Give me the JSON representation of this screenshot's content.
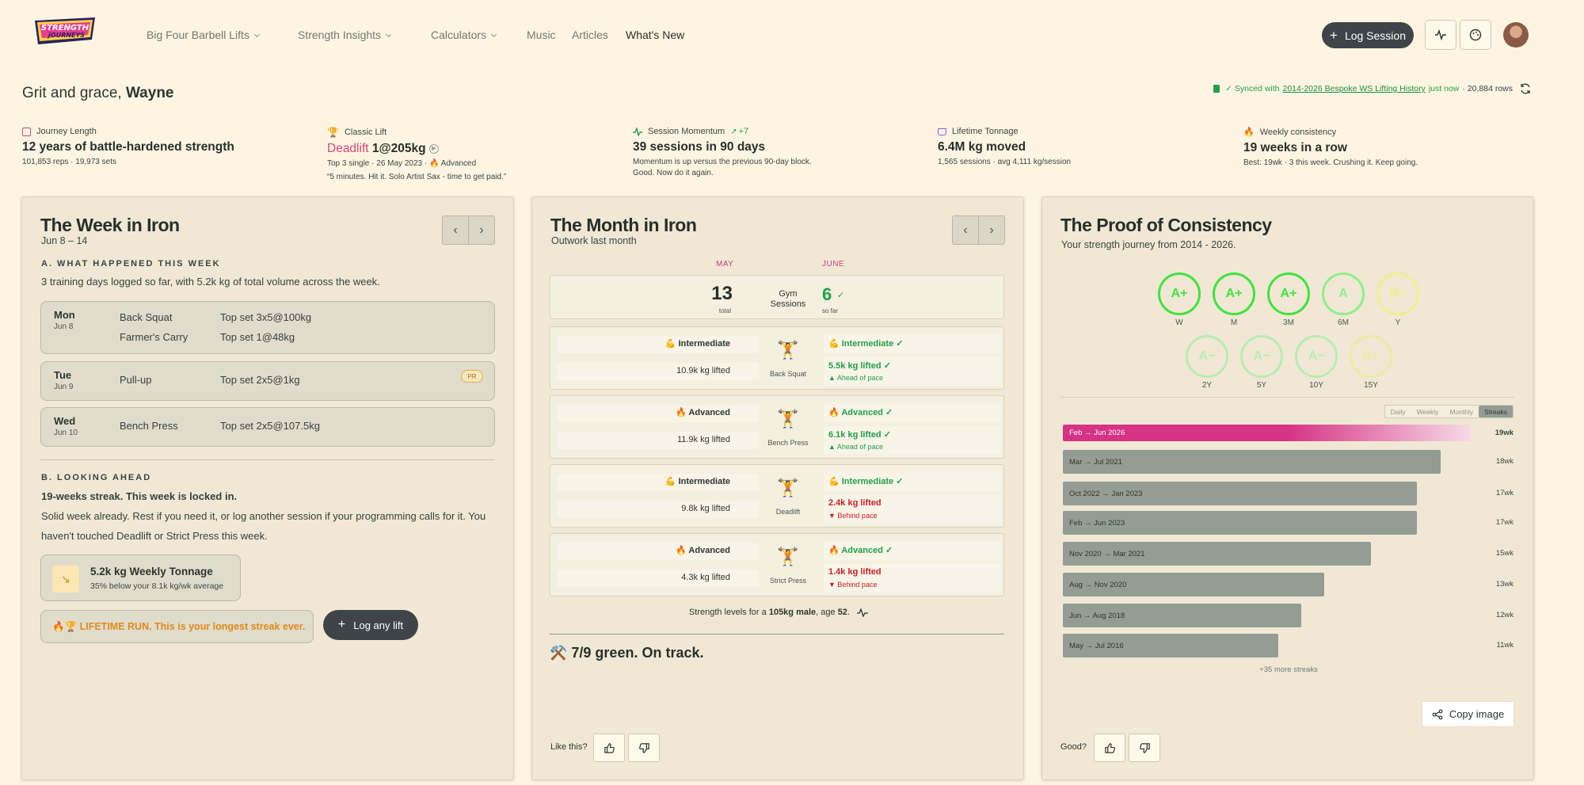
{
  "header": {
    "nav": {
      "big_four": "Big Four Barbell Lifts",
      "insights": "Strength Insights",
      "calculators": "Calculators",
      "music": "Music",
      "articles": "Articles",
      "whats_new": "What's New"
    },
    "log_session": "Log Session"
  },
  "greeting": {
    "prefix": "Grit and grace,",
    "name": "Wayne"
  },
  "sync": {
    "prefix": "✓ Synced with",
    "sheet": "2014-2026 Bespoke WS Lifting History",
    "when": "just now",
    "rows": "· 20,884 rows"
  },
  "stats": {
    "journey": {
      "label": "Journey Length",
      "big": "12 years of battle-hardened strength",
      "sub": "101,853 reps · 19,973 sets"
    },
    "classic": {
      "label": "Classic Lift",
      "lift": "Deadlift",
      "value": "1@205kg",
      "sub": "Top 3 single · 26 May 2023 ·",
      "level": "🔥 Advanced",
      "quote": "“5 minutes. Hit it. Solo Artist Sax - time to get paid.”"
    },
    "momentum": {
      "label": "Session Momentum",
      "delta": "+7",
      "big": "39 sessions in 90 days",
      "sub1": "Momentum is up versus the previous 90-day block.",
      "sub2": "Good. Now do it again."
    },
    "tonnage": {
      "label": "Lifetime Tonnage",
      "big": "6.4M kg moved",
      "sub": "1,565 sessions · avg 4,111 kg/session"
    },
    "consistency": {
      "label": "Weekly consistency",
      "big": "19 weeks in a row",
      "sub": "Best: 19wk · 3 this week. Crushing it. Keep going."
    }
  },
  "week": {
    "title": "The Week in Iron",
    "range": "Jun 8 – 14",
    "section_a": "A. WHAT HAPPENED THIS WEEK",
    "summary": "3 training days logged so far, with 5.2k kg of total volume across the week.",
    "days": [
      {
        "day": "Mon",
        "date": "Jun 8",
        "lifts": [
          {
            "name": "Back Squat",
            "set": "Top set 3x5@100kg"
          },
          {
            "name": "Farmer's Carry",
            "set": "Top set 1@48kg"
          }
        ]
      },
      {
        "day": "Tue",
        "date": "Jun 9",
        "lifts": [
          {
            "name": "Pull-up",
            "set": "Top set 2x5@1kg"
          }
        ],
        "badge": "PR"
      },
      {
        "day": "Wed",
        "date": "Jun 10",
        "lifts": [
          {
            "name": "Bench Press",
            "set": "Top set 2x5@107.5kg"
          }
        ]
      }
    ],
    "section_b": "B. LOOKING AHEAD",
    "streak_line": "19-weeks streak. This week is locked in.",
    "advice1": "Solid week already. Rest if you need it, or log another session if your programming calls for it. You",
    "advice2": "haven't touched Deadlift or Strict Press this week.",
    "tonnage_title": "5.2k kg Weekly Tonnage",
    "tonnage_sub": "35% below your 8.1k kg/wk average",
    "lifetime_run": "🔥🏆 LIFETIME RUN. This is your longest streak ever.",
    "log_any": "Log any lift"
  },
  "month": {
    "title": "The Month in Iron",
    "subtitle": "Outwork last month",
    "col_prev": "MAY",
    "col_curr": "JUNE",
    "sessions_prev": "13",
    "sessions_prev_label": "total",
    "sessions_label": "Gym Sessions",
    "sessions_curr": "6",
    "sessions_curr_label": "so far",
    "lifts": [
      {
        "name": "Back Squat",
        "prev_level": "💪 Intermediate",
        "prev_kg": "10.9k kg lifted",
        "curr_level": "💪 Intermediate ✓",
        "curr_kg": "5.5k kg lifted ✓",
        "pace": "▲ Ahead of pace",
        "status": "green"
      },
      {
        "name": "Bench Press",
        "prev_level": "🔥 Advanced",
        "prev_kg": "11.9k kg lifted",
        "curr_level": "🔥 Advanced ✓",
        "curr_kg": "6.1k kg lifted ✓",
        "pace": "▲ Ahead of pace",
        "status": "green"
      },
      {
        "name": "Deadlift",
        "prev_level": "💪 Intermediate",
        "prev_kg": "9.8k kg lifted",
        "curr_level": "💪 Intermediate ✓",
        "curr_kg": "2.4k kg lifted",
        "pace": "▼ Behind pace",
        "status": "red"
      },
      {
        "name": "Strict Press",
        "prev_level": "🔥 Advanced",
        "prev_kg": "4.3k kg lifted",
        "curr_level": "🔥 Advanced ✓",
        "curr_kg": "1.4k kg lifted",
        "pace": "▼ Behind pace",
        "status": "red"
      }
    ],
    "levels_prefix": "Strength levels for a",
    "levels_who": "105kg male",
    "levels_mid": ", age",
    "levels_age": "52",
    "levels_end": ".",
    "verdict": "⚒️ 7/9 green. On track.",
    "feedback": "Like this?"
  },
  "proof": {
    "title": "The Proof of Consistency",
    "subtitle": "Your strength journey from 2014 - 2026.",
    "grades_row1": [
      {
        "grade": "A+",
        "label": "W",
        "color": "#41e23c"
      },
      {
        "grade": "A+",
        "label": "M",
        "color": "#41e23c"
      },
      {
        "grade": "A+",
        "label": "3M",
        "color": "#41e23c"
      },
      {
        "grade": "A",
        "label": "6M",
        "color": "#8ef08b"
      },
      {
        "grade": "B+",
        "label": "Y",
        "color": "#f0ef8e"
      }
    ],
    "grades_row2": [
      {
        "grade": "A−",
        "label": "2Y",
        "color": "#b8ecb3"
      },
      {
        "grade": "A−",
        "label": "5Y",
        "color": "#b8ecb3"
      },
      {
        "grade": "A−",
        "label": "10Y",
        "color": "#b8ecb3"
      },
      {
        "grade": "B+",
        "label": "15Y",
        "color": "#eeeaa6"
      }
    ],
    "tabs": [
      "Daily",
      "Weekly",
      "Monthly",
      "Streaks"
    ],
    "active_tab": "Streaks",
    "streaks": [
      {
        "range": "Feb → Jun 2026",
        "weeks": "19wk",
        "value": 19,
        "current": true
      },
      {
        "range": "Mar → Jul 2021",
        "weeks": "18wk",
        "value": 18
      },
      {
        "range": "Oct 2022 → Jan 2023",
        "weeks": "17wk",
        "value": 17
      },
      {
        "range": "Feb → Jun 2023",
        "weeks": "17wk",
        "value": 17
      },
      {
        "range": "Nov 2020 → Mar 2021",
        "weeks": "15wk",
        "value": 15
      },
      {
        "range": "Aug → Nov 2020",
        "weeks": "13wk",
        "value": 13
      },
      {
        "range": "Jun → Aug 2018",
        "weeks": "12wk",
        "value": 12
      },
      {
        "range": "May → Jul 2016",
        "weeks": "11wk",
        "value": 11
      }
    ],
    "more": "+35 more streaks",
    "copy": "Copy image",
    "feedback": "Good?"
  }
}
